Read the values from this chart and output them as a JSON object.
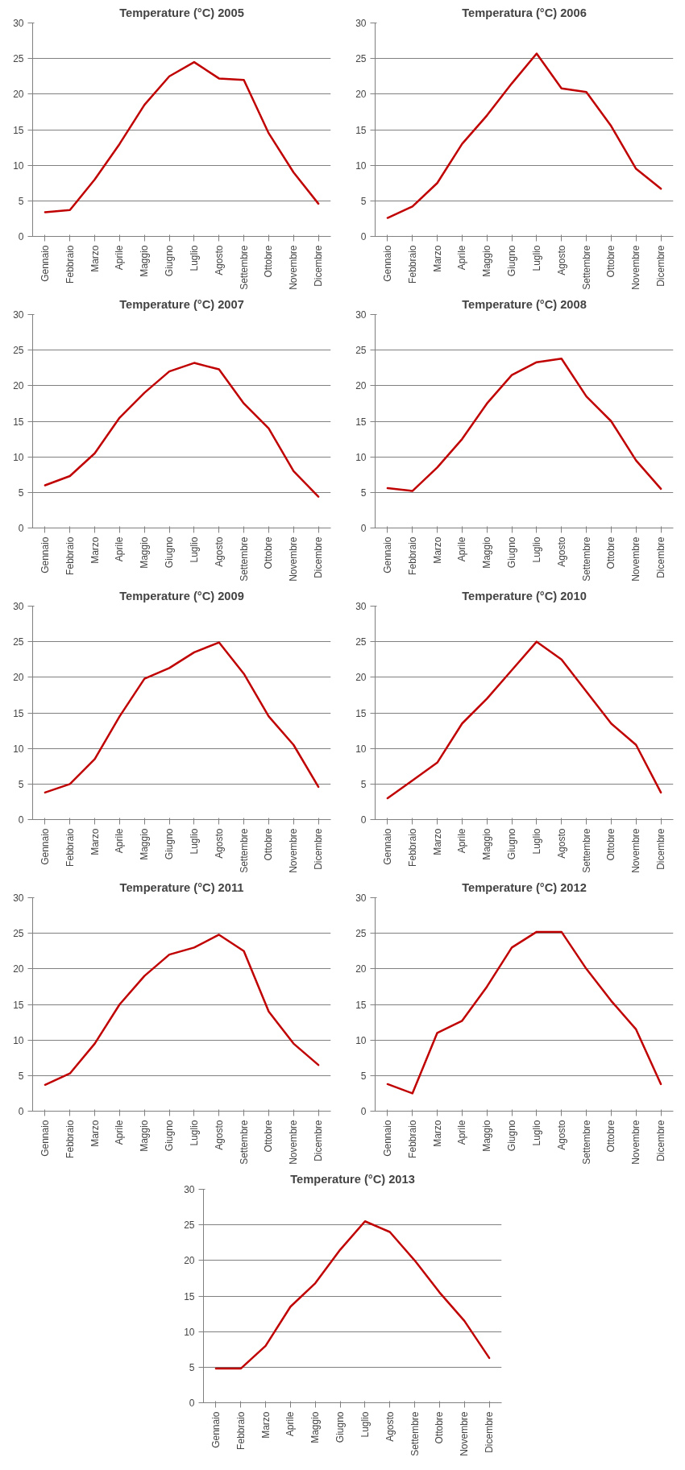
{
  "chart_data": [
    {
      "type": "line",
      "title": "Temperature (°C) 2005",
      "categories": [
        "Gennaio",
        "Febbraio",
        "Marzo",
        "Aprile",
        "Maggio",
        "Giugno",
        "Luglio",
        "Agosto",
        "Settembre",
        "Ottobre",
        "Novembre",
        "Dicembre"
      ],
      "series": [
        {
          "color": "#c00000",
          "values": [
            3.4,
            3.7,
            8,
            13,
            18.5,
            22.5,
            24.5,
            22.2,
            22,
            14.5,
            9,
            4.6
          ]
        }
      ],
      "ylim": [
        0,
        30
      ],
      "yticks": [
        0,
        5,
        10,
        15,
        20,
        25,
        30
      ],
      "grid": "y"
    },
    {
      "type": "line",
      "title": "Temperatura (°C) 2006",
      "categories": [
        "Gennaio",
        "Febbraio",
        "Marzo",
        "Aprile",
        "Maggio",
        "Giugno",
        "Luglio",
        "Agosto",
        "Settembre",
        "Ottobre",
        "Novembre",
        "Dicembre"
      ],
      "series": [
        {
          "color": "#c00000",
          "values": [
            2.6,
            4.2,
            7.5,
            13,
            17,
            21.5,
            25.7,
            20.8,
            20.3,
            15.5,
            9.5,
            6.7
          ]
        }
      ],
      "ylim": [
        0,
        30
      ],
      "yticks": [
        0,
        5,
        10,
        15,
        20,
        25,
        30
      ],
      "grid": "y"
    },
    {
      "type": "line",
      "title": "Temperature (°C) 2007",
      "categories": [
        "Gennaio",
        "Febbraio",
        "Marzo",
        "Aprile",
        "Maggio",
        "Giugno",
        "Luglio",
        "Agosto",
        "Settembre",
        "Ottobre",
        "Novembre",
        "Dicembre"
      ],
      "series": [
        {
          "color": "#c00000",
          "values": [
            6,
            7.3,
            10.5,
            15.5,
            19,
            22,
            23.2,
            22.3,
            17.5,
            14,
            8,
            4.4
          ]
        }
      ],
      "ylim": [
        0,
        30
      ],
      "yticks": [
        0,
        5,
        10,
        15,
        20,
        25,
        30
      ],
      "grid": "y"
    },
    {
      "type": "line",
      "title": "Temperature (°C) 2008",
      "categories": [
        "Gennaio",
        "Febbraio",
        "Marzo",
        "Aprile",
        "Maggio",
        "Giugno",
        "Luglio",
        "Agosto",
        "Settembre",
        "Ottobre",
        "Novembre",
        "Dicembre"
      ],
      "series": [
        {
          "color": "#c00000",
          "values": [
            5.6,
            5.2,
            8.5,
            12.5,
            17.5,
            21.5,
            23.3,
            23.8,
            18.5,
            15,
            9.5,
            5.5
          ]
        }
      ],
      "ylim": [
        0,
        30
      ],
      "yticks": [
        0,
        5,
        10,
        15,
        20,
        25,
        30
      ],
      "grid": "y"
    },
    {
      "type": "line",
      "title": "Temperature (°C) 2009",
      "categories": [
        "Gennaio",
        "Febbraio",
        "Marzo",
        "Aprile",
        "Maggio",
        "Giugno",
        "Luglio",
        "Agosto",
        "Settembre",
        "Ottobre",
        "Novembre",
        "Dicembre"
      ],
      "series": [
        {
          "color": "#c00000",
          "values": [
            3.8,
            5,
            8.5,
            14.5,
            19.8,
            21.3,
            23.5,
            24.9,
            20.5,
            14.5,
            10.5,
            4.6
          ]
        }
      ],
      "ylim": [
        0,
        30
      ],
      "yticks": [
        0,
        5,
        10,
        15,
        20,
        25,
        30
      ],
      "grid": "y"
    },
    {
      "type": "line",
      "title": "Temperature (°C) 2010",
      "categories": [
        "Gennaio",
        "Febbraio",
        "Marzo",
        "Aprile",
        "Maggio",
        "Giugno",
        "Luglio",
        "Agosto",
        "Settembre",
        "Ottobre",
        "Novembre",
        "Dicembre"
      ],
      "series": [
        {
          "color": "#c00000",
          "values": [
            3,
            5.5,
            8,
            13.5,
            17,
            21,
            25,
            22.5,
            18,
            13.5,
            10.5,
            3.8
          ]
        }
      ],
      "ylim": [
        0,
        30
      ],
      "yticks": [
        0,
        5,
        10,
        15,
        20,
        25,
        30
      ],
      "grid": "y"
    },
    {
      "type": "line",
      "title": "Temperature (°C) 2011",
      "categories": [
        "Gennaio",
        "Febbraio",
        "Marzo",
        "Aprile",
        "Maggio",
        "Giugno",
        "Luglio",
        "Agosto",
        "Settembre",
        "Ottobre",
        "Novembre",
        "Dicembre"
      ],
      "series": [
        {
          "color": "#c00000",
          "values": [
            3.7,
            5.3,
            9.5,
            15,
            19,
            22,
            23,
            24.8,
            22.5,
            14,
            9.5,
            6.5
          ]
        }
      ],
      "ylim": [
        0,
        30
      ],
      "yticks": [
        0,
        5,
        10,
        15,
        20,
        25,
        30
      ],
      "grid": "y"
    },
    {
      "type": "line",
      "title": "Temperature (°C) 2012",
      "categories": [
        "Gennaio",
        "Febbraio",
        "Marzo",
        "Aprile",
        "Maggio",
        "Giugno",
        "Luglio",
        "Agosto",
        "Settembre",
        "Ottobre",
        "Novembre",
        "Dicembre"
      ],
      "series": [
        {
          "color": "#c00000",
          "values": [
            3.8,
            2.5,
            11,
            12.7,
            17.5,
            23,
            25.2,
            25.2,
            20,
            15.5,
            11.5,
            3.8
          ]
        }
      ],
      "ylim": [
        0,
        30
      ],
      "yticks": [
        0,
        5,
        10,
        15,
        20,
        25,
        30
      ],
      "grid": "y"
    },
    {
      "type": "line",
      "title": "Temperature (°C) 2013",
      "categories": [
        "Gennaio",
        "Febbraio",
        "Marzo",
        "Aprile",
        "Maggio",
        "Giugno",
        "Luglio",
        "Agosto",
        "Settembre",
        "Ottobre",
        "Novembre",
        "Dicembre"
      ],
      "series": [
        {
          "color": "#c00000",
          "values": [
            4.8,
            4.8,
            8,
            13.5,
            16.8,
            21.5,
            25.5,
            24,
            20,
            15.5,
            11.5,
            6.3
          ]
        }
      ],
      "ylim": [
        0,
        30
      ],
      "yticks": [
        0,
        5,
        10,
        15,
        20,
        25,
        30
      ],
      "grid": "y"
    }
  ]
}
